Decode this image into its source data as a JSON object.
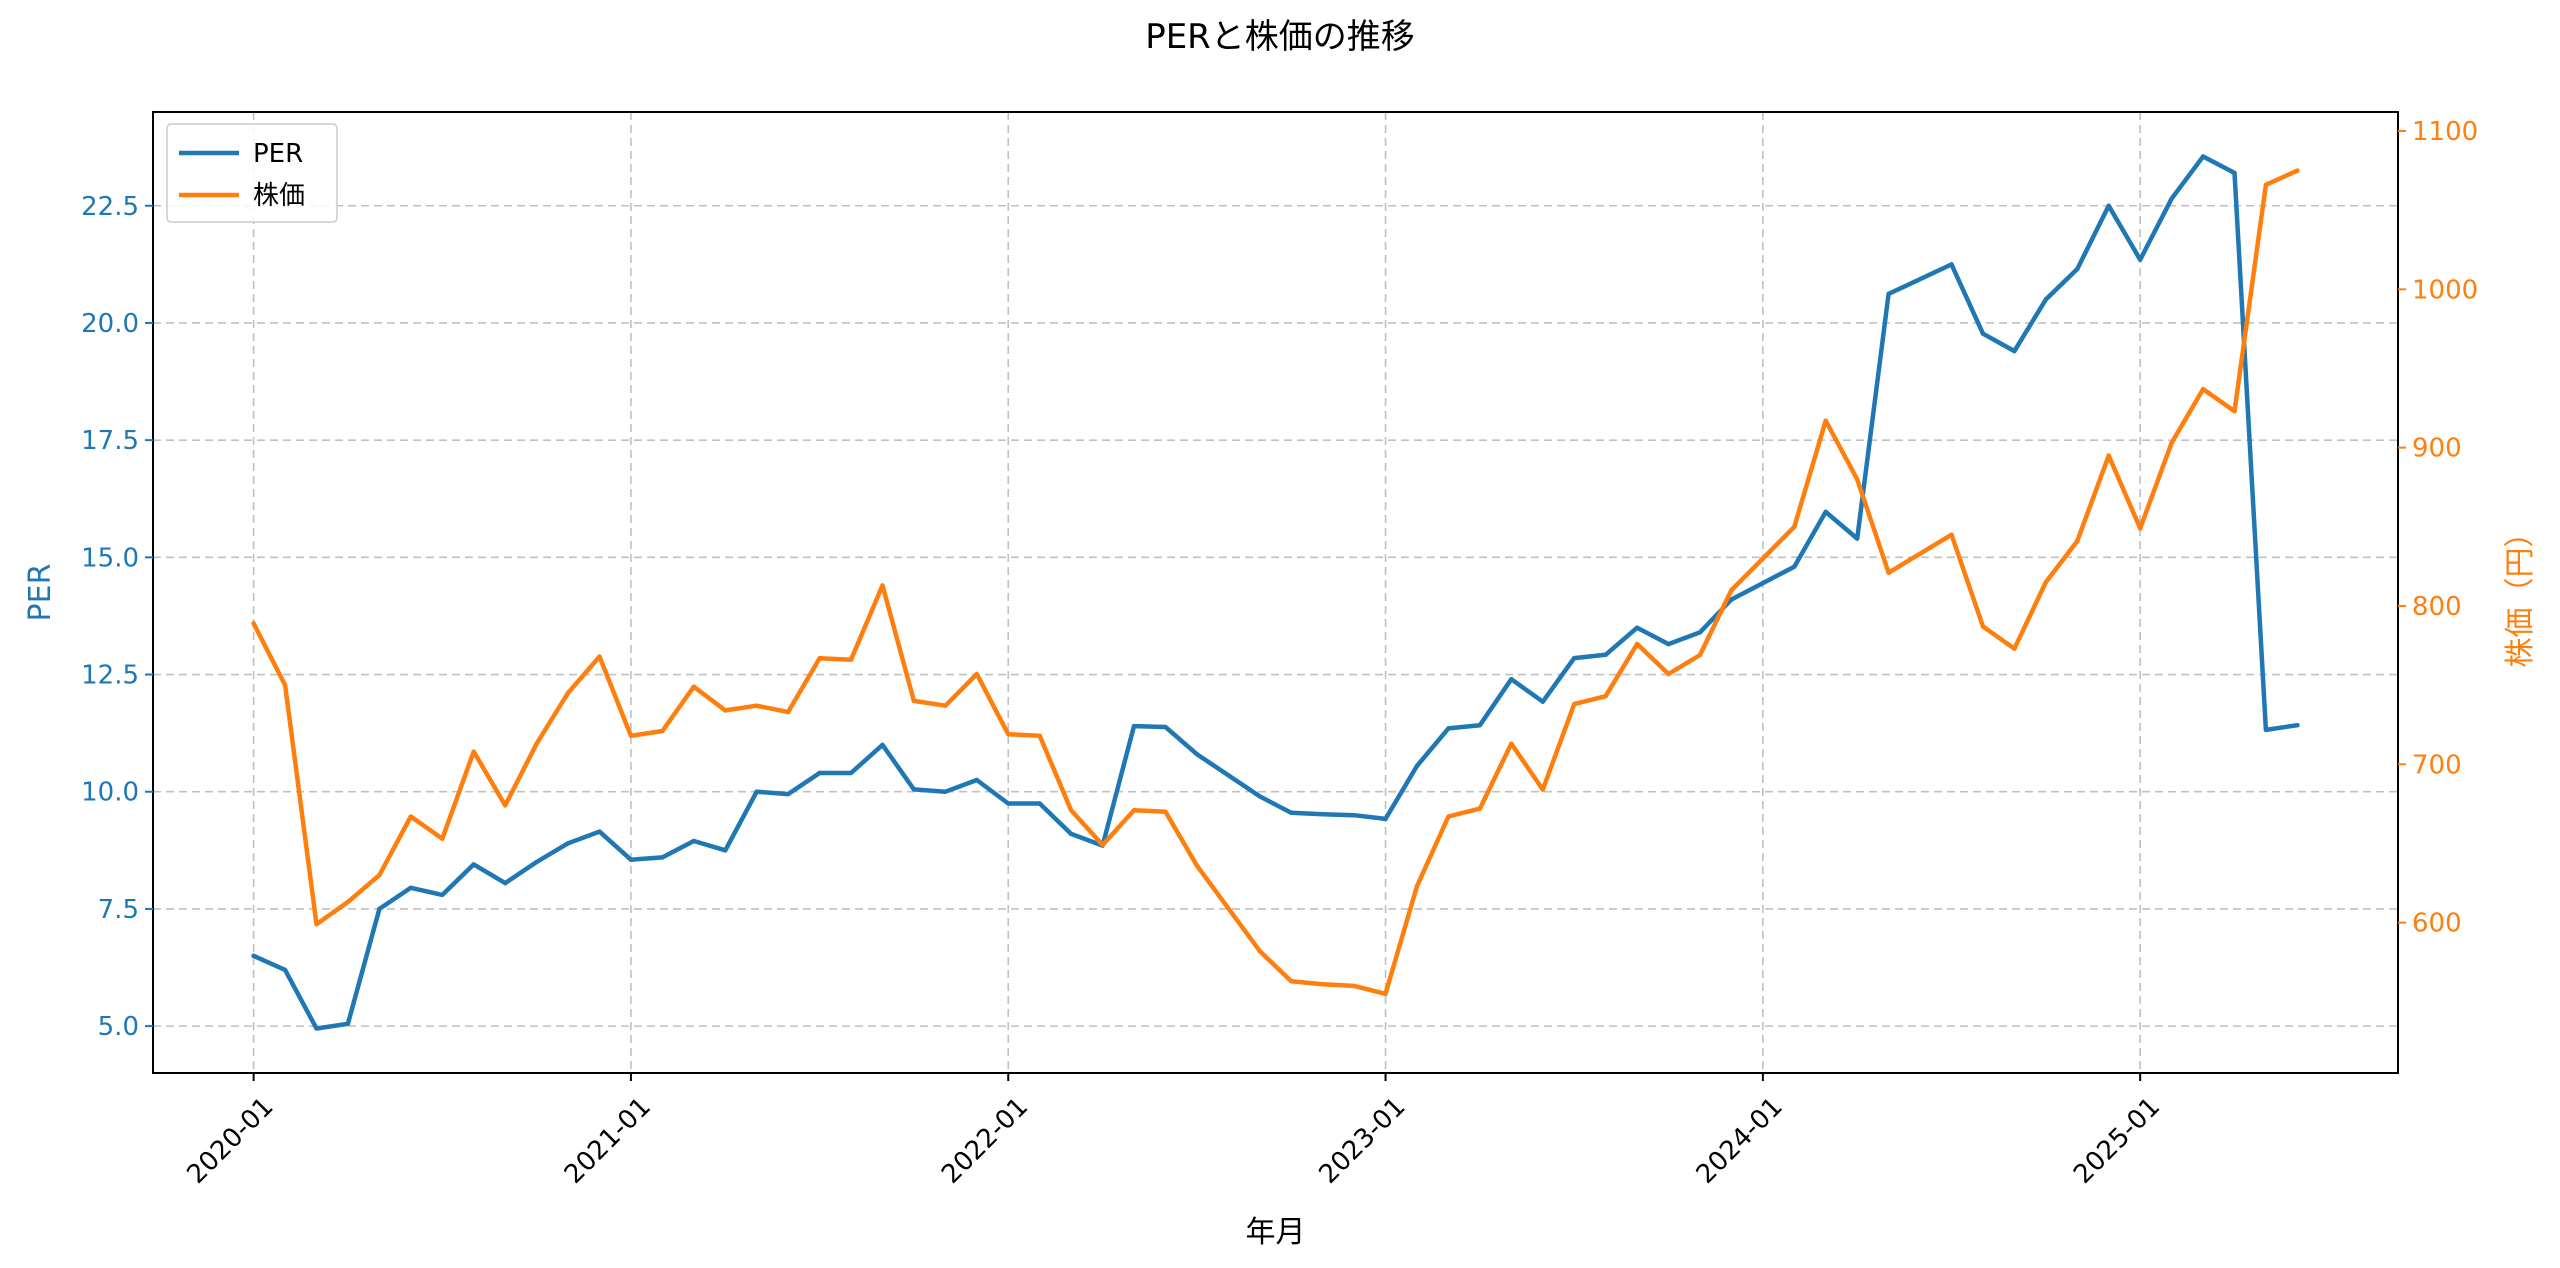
{
  "chart_data": {
    "type": "line",
    "title": "PERと株価の推移",
    "xlabel": "年月",
    "ylabel_left": "PER",
    "ylabel_right": "株価（円）",
    "colors": {
      "per": "#1f77b4",
      "price": "#ff7f0e",
      "grid": "#b0b0b0"
    },
    "x_start": "2020-01",
    "x_ticks": [
      "2020-01",
      "2021-01",
      "2022-01",
      "2023-01",
      "2024-01",
      "2025-01"
    ],
    "x_tick_months": [
      0,
      12,
      24,
      36,
      48,
      60
    ],
    "x_range_months": [
      -3.2,
      68.2
    ],
    "ylim_left": [
      4.0,
      24.5
    ],
    "ylim_right": [
      505,
      1112
    ],
    "y_ticks_left": [
      "5.0",
      "7.5",
      "10.0",
      "12.5",
      "15.0",
      "17.5",
      "20.0",
      "22.5"
    ],
    "y_ticks_right": [
      "600",
      "700",
      "800",
      "900",
      "1000",
      "1100"
    ],
    "legend": {
      "position": "top-left",
      "entries": [
        "PER",
        "株価"
      ]
    },
    "series": [
      {
        "name": "PER",
        "axis": "left",
        "months": [
          0,
          1,
          2,
          3,
          4,
          5,
          6,
          7,
          8,
          9,
          10,
          11,
          12,
          13,
          14,
          15,
          16,
          17,
          18,
          19,
          20,
          21,
          22,
          23,
          24,
          25,
          26,
          27,
          28,
          29,
          30,
          31,
          32,
          33,
          34,
          35,
          36,
          37,
          38,
          39,
          40,
          41,
          42,
          43,
          44,
          45,
          46,
          47,
          48,
          49,
          50,
          51,
          52,
          54,
          55,
          56,
          57,
          58,
          59,
          60,
          61,
          62,
          63,
          64,
          65
        ],
        "values": [
          6.5,
          6.2,
          4.95,
          5.05,
          7.5,
          7.95,
          7.8,
          8.45,
          8.05,
          8.5,
          8.9,
          9.15,
          8.55,
          8.6,
          8.95,
          8.75,
          10.0,
          9.95,
          10.4,
          10.4,
          11.0,
          10.05,
          10.0,
          10.25,
          9.75,
          9.75,
          9.1,
          8.85,
          11.4,
          11.38,
          10.8,
          10.35,
          9.9,
          9.55,
          9.52,
          9.5,
          9.42,
          10.55,
          11.35,
          11.42,
          12.4,
          11.92,
          12.85,
          12.92,
          13.5,
          13.15,
          13.4,
          14.1,
          14.45,
          14.8,
          15.97,
          15.4,
          20.62,
          21.25,
          19.77,
          19.4,
          20.5,
          21.15,
          22.5,
          21.35,
          22.65,
          23.55,
          23.2,
          11.32,
          11.42
        ]
      },
      {
        "name": "株価",
        "axis": "right",
        "months": [
          0,
          1,
          2,
          3,
          4,
          5,
          6,
          7,
          8,
          9,
          10,
          11,
          12,
          13,
          14,
          15,
          16,
          17,
          18,
          19,
          20,
          21,
          22,
          23,
          24,
          25,
          26,
          27,
          28,
          29,
          30,
          31,
          32,
          33,
          34,
          35,
          36,
          37,
          38,
          39,
          40,
          41,
          42,
          43,
          44,
          45,
          46,
          47,
          48,
          49,
          50,
          51,
          52,
          54,
          55,
          56,
          57,
          58,
          59,
          60,
          61,
          62,
          63,
          64,
          65
        ],
        "values": [
          789,
          750,
          599,
          613,
          630,
          667,
          653,
          708,
          674,
          713,
          745,
          768,
          718,
          721,
          749,
          734,
          737,
          733,
          767,
          766,
          813,
          740,
          737,
          757,
          719,
          718,
          671,
          649,
          671,
          670,
          636,
          609,
          582,
          563,
          561,
          560,
          555,
          623,
          667,
          672,
          713,
          684,
          738,
          743,
          776,
          757,
          769,
          810,
          830,
          850,
          917,
          880,
          821,
          845,
          787,
          773,
          815,
          841,
          895,
          849,
          903,
          937,
          923,
          1066,
          1075
        ]
      }
    ]
  }
}
